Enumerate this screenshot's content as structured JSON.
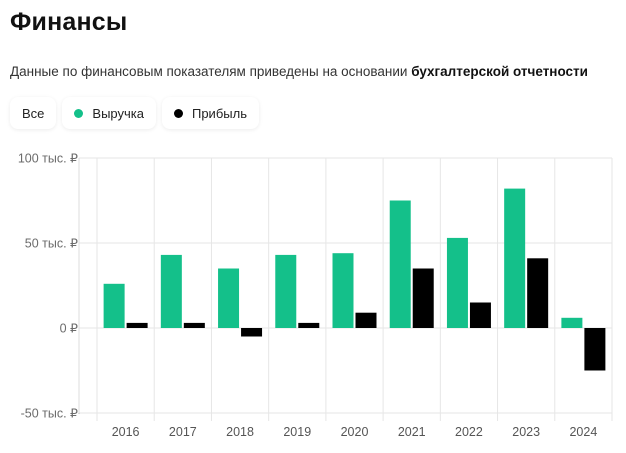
{
  "header": {
    "title": "Финансы",
    "subtitle_plain": "Данные по финансовым показателям приведены на основании ",
    "subtitle_bold": "бухгалтерской отчетности"
  },
  "legend": {
    "all_label": "Все",
    "items": [
      {
        "label": "Выручка",
        "color": "#14c08a"
      },
      {
        "label": "Прибыль",
        "color": "#000000"
      }
    ]
  },
  "chart_data": {
    "type": "bar",
    "title": "Финансы",
    "xlabel": "",
    "ylabel": "",
    "categories": [
      "2016",
      "2017",
      "2018",
      "2019",
      "2020",
      "2021",
      "2022",
      "2023",
      "2024"
    ],
    "series": [
      {
        "name": "Выручка",
        "color": "#14c08a",
        "values": [
          26,
          43,
          35,
          43,
          44,
          75,
          53,
          82,
          6
        ]
      },
      {
        "name": "Прибыль",
        "color": "#000000",
        "values": [
          3,
          3,
          -5,
          3,
          9,
          35,
          15,
          41,
          -25
        ]
      }
    ],
    "yticks": [
      {
        "value": 100,
        "label": "100 тыс. ₽"
      },
      {
        "value": 50,
        "label": "50 тыс. ₽"
      },
      {
        "value": 0,
        "label": "0 ₽"
      },
      {
        "value": -50,
        "label": "-50 тыс. ₽"
      }
    ],
    "ylim": [
      -50,
      100
    ],
    "grid": true,
    "legend_position": "top-left"
  }
}
